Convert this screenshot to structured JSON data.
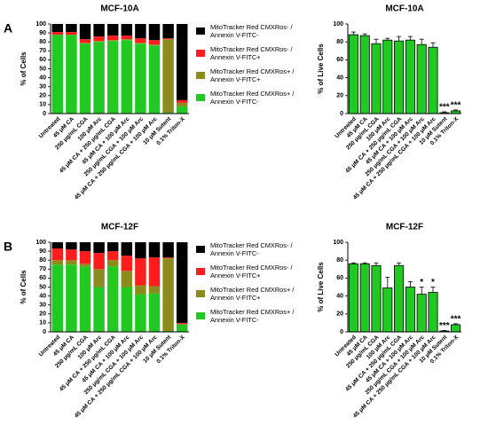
{
  "chart_data": [
    {
      "type": "stacked_bar",
      "panel": "A",
      "title": "MCF-10A",
      "ylabel": "% of Cells",
      "categories": [
        "Untreated",
        "45 μM CA",
        "250 μg/mL CGA",
        "100 μM Arc",
        "45 μM CA + 250 μg/mL CGA",
        "45 μM CA + 100 μM Arc",
        "250 μg/mL CGA + 100 μM Arc",
        "45 μM CA + 250 μg/mL CGA + 100 μM Arc",
        "10 μM Sutent",
        "0.1% Triton-X"
      ],
      "series": [
        {
          "name": "MitoTracker Red CMXRos+ / Annexin V-FITC-",
          "color": "#22c922",
          "values": [
            88,
            88,
            78,
            80,
            81,
            82,
            78,
            76,
            1,
            8
          ]
        },
        {
          "name": "MitoTracker Red CMXRos+ / Annexin V-FITC+",
          "color": "#8c8c1c",
          "values": [
            0,
            0,
            1,
            1,
            1,
            1,
            1,
            1,
            82,
            4
          ]
        },
        {
          "name": "MitoTracker Red CMXRos- / Annexin V-FITC+",
          "color": "#ff1c1c",
          "values": [
            3,
            3,
            4,
            5,
            5,
            4,
            5,
            5,
            1,
            3
          ]
        },
        {
          "name": "MitoTracker Red CMXRos- / Annexin V-FITC-",
          "color": "#000000",
          "values": [
            9,
            9,
            17,
            14,
            13,
            13,
            16,
            18,
            16,
            85
          ]
        }
      ],
      "ylim": [
        0,
        100
      ],
      "yticks": [
        0,
        10,
        20,
        30,
        40,
        50,
        60,
        70,
        80,
        90,
        100
      ]
    },
    {
      "type": "bar",
      "title": "MCF-10A",
      "ylabel": "% of Live Cells",
      "color": "#22c922",
      "categories": [
        "Untreated",
        "45 μM CA",
        "250 μg/mL CGA",
        "100 μM Arc",
        "45 μM CA + 250 μg/mL CGA",
        "45 μM CA + 100 μM Arc",
        "250 μg/mL CGA + 100 μM Arc",
        "45 μM CA + 250 μg/mL CGA + 100 μM Arc",
        "10 μM Sutent",
        "0.1% Triton-X"
      ],
      "values": [
        88,
        87,
        78,
        82,
        81,
        82,
        77,
        74,
        1,
        3
      ],
      "errors": [
        3,
        2,
        5,
        2,
        5,
        4,
        6,
        5,
        1,
        1
      ],
      "annotations": [
        null,
        null,
        null,
        null,
        null,
        null,
        null,
        null,
        "***",
        "***"
      ],
      "ylim": [
        0,
        100
      ],
      "yticks": [
        0,
        20,
        40,
        60,
        80,
        100
      ]
    },
    {
      "type": "stacked_bar",
      "panel": "B",
      "title": "MCF-12F",
      "ylabel": "% of Cells",
      "categories": [
        "Untreated",
        "45 μM CA",
        "250 μg/mL CGA",
        "100 μM Arc",
        "45 μM CA + 250 μg/mL CGA",
        "45 μM CA + 100 μM Arc",
        "250 μg/mL CGA + 100 μM Arc",
        "45 μM CA + 250 μg/mL CGA + 100 μM Arc",
        "10 μM Sutent",
        "0.1% Triton-X"
      ],
      "series": [
        {
          "name": "MitoTracker Red CMXRos+ / Annexin V-FITC-",
          "color": "#22c922",
          "values": [
            75,
            75,
            73,
            50,
            73,
            50,
            42,
            43,
            1,
            8
          ]
        },
        {
          "name": "MitoTracker Red CMXRos+ / Annexin V-FITC+",
          "color": "#8c8c1c",
          "values": [
            5,
            5,
            3,
            20,
            7,
            18,
            10,
            8,
            81,
            1
          ]
        },
        {
          "name": "MitoTracker Red CMXRos- / Annexin V-FITC+",
          "color": "#ff1c1c",
          "values": [
            13,
            12,
            14,
            18,
            10,
            17,
            30,
            32,
            1,
            1
          ]
        },
        {
          "name": "MitoTracker Red CMXRos- / Annexin V-FITC-",
          "color": "#000000",
          "values": [
            7,
            8,
            10,
            12,
            10,
            15,
            18,
            17,
            17,
            90
          ]
        }
      ],
      "ylim": [
        0,
        100
      ],
      "yticks": [
        0,
        10,
        20,
        30,
        40,
        50,
        60,
        70,
        80,
        90,
        100
      ]
    },
    {
      "type": "bar",
      "title": "MCF-12F",
      "ylabel": "% of Live Cells",
      "color": "#22c922",
      "categories": [
        "Untreated",
        "45 μM CA",
        "250 μg/mL CGA",
        "100 μM Arc",
        "45 μM CA + 250 μg/mL CGA",
        "45 μM CA + 100 μM Arc",
        "250 μg/mL CGA + 100 μM Arc",
        "45 μM CA + 250 μg/mL CGA + 100 μM Arc",
        "10 μM Sutent",
        "0.1% Triton-X"
      ],
      "values": [
        76,
        76,
        74,
        49,
        74,
        50,
        42,
        44,
        1,
        8
      ],
      "errors": [
        1,
        1,
        3,
        12,
        3,
        6,
        8,
        6,
        0.5,
        1
      ],
      "annotations": [
        null,
        null,
        null,
        null,
        null,
        null,
        "*",
        "*",
        "***",
        "***"
      ],
      "ylim": [
        0,
        100
      ],
      "yticks": [
        0,
        20,
        40,
        60,
        80,
        100
      ]
    }
  ]
}
